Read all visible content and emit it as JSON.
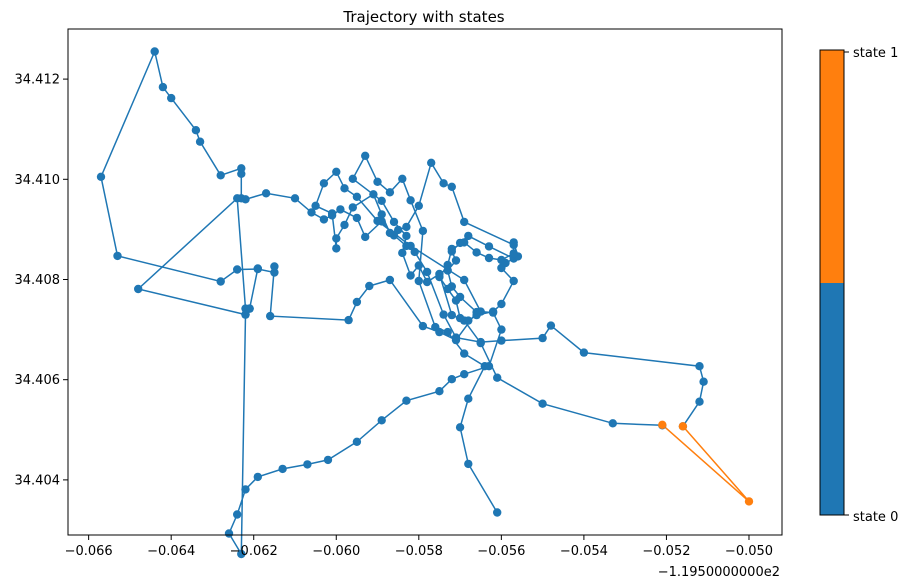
{
  "chart_data": {
    "type": "line",
    "title": "Trajectory with states",
    "xlabel": "",
    "ylabel": "",
    "x_offset_label": "−1.1950000000e2",
    "xlim": [
      -0.0665,
      -0.0492
    ],
    "ylim": [
      34.4029,
      34.413
    ],
    "x_ticks": [
      -0.066,
      -0.064,
      -0.062,
      -0.06,
      -0.058,
      -0.056,
      -0.054,
      -0.052,
      -0.05
    ],
    "x_tick_labels": [
      "−0.066",
      "−0.064",
      "−0.062",
      "−0.060",
      "−0.058",
      "−0.056",
      "−0.054",
      "−0.052",
      "−0.050"
    ],
    "y_ticks": [
      34.404,
      34.406,
      34.408,
      34.41,
      34.412
    ],
    "y_tick_labels": [
      "34.404",
      "34.406",
      "34.408",
      "34.410",
      "34.412"
    ],
    "grid": false,
    "colorbar": {
      "labels": [
        "state 0",
        "state 1"
      ],
      "colors": [
        "#1f77b4",
        "#ff7f0e"
      ]
    },
    "series": [
      {
        "color": "#1f77b4",
        "points": [
          [
            -0.0561,
            34.40335
          ],
          [
            -0.0568,
            34.40432
          ],
          [
            -0.057,
            34.40505
          ],
          [
            -0.0568,
            34.40562
          ],
          [
            -0.0564,
            34.40627
          ],
          [
            -0.0569,
            34.40652
          ],
          [
            -0.0573,
            34.40695
          ],
          [
            -0.0576,
            34.40705
          ],
          [
            -0.058,
            34.40797
          ],
          [
            -0.0579,
            34.40897
          ],
          [
            -0.0582,
            34.40958
          ],
          [
            -0.0584,
            34.41001
          ],
          [
            -0.0587,
            34.40974
          ],
          [
            -0.059,
            34.40995
          ],
          [
            -0.0593,
            34.41047
          ],
          [
            -0.0596,
            34.41001
          ],
          [
            -0.0589,
            34.40957
          ],
          [
            -0.0586,
            34.40915
          ],
          [
            -0.0583,
            34.40887
          ],
          [
            -0.0584,
            34.40853
          ],
          [
            -0.0582,
            34.40808
          ],
          [
            -0.058,
            34.40828
          ],
          [
            -0.0578,
            34.40795
          ],
          [
            -0.0575,
            34.40811
          ],
          [
            -0.0572,
            34.40729
          ],
          [
            -0.0569,
            34.40718
          ],
          [
            -0.0565,
            34.40673
          ],
          [
            -0.0561,
            34.40604
          ],
          [
            -0.055,
            34.40552
          ],
          [
            -0.0533,
            34.40513
          ],
          [
            -0.0521,
            34.40509
          ]
        ]
      },
      {
        "color": "#1f77b4",
        "points": [
          [
            -0.0516,
            34.40507
          ],
          [
            -0.0512,
            34.40556
          ],
          [
            -0.0511,
            34.40596
          ],
          [
            -0.0512,
            34.40627
          ],
          [
            -0.054,
            34.40654
          ],
          [
            -0.0548,
            34.40708
          ],
          [
            -0.055,
            34.40683
          ],
          [
            -0.056,
            34.40678
          ],
          [
            -0.0565,
            34.40675
          ],
          [
            -0.0571,
            34.40684
          ],
          [
            -0.0574,
            34.4073
          ],
          [
            -0.0578,
            34.40815
          ],
          [
            -0.0581,
            34.40855
          ],
          [
            -0.0583,
            34.40867
          ],
          [
            -0.0586,
            34.40888
          ],
          [
            -0.0589,
            34.40916
          ],
          [
            -0.0593,
            34.40885
          ],
          [
            -0.0595,
            34.40923
          ],
          [
            -0.0599,
            34.4094
          ],
          [
            -0.0601,
            34.40928
          ],
          [
            -0.0603,
            34.4092
          ],
          [
            -0.0606,
            34.40934
          ],
          [
            -0.061,
            34.40962
          ],
          [
            -0.0617,
            34.40972
          ],
          [
            -0.0622,
            34.4096
          ],
          [
            -0.0623,
            34.40962
          ],
          [
            -0.0623,
            34.41011
          ],
          [
            -0.0623,
            34.41022
          ],
          [
            -0.0628,
            34.41008
          ],
          [
            -0.0633,
            34.41075
          ],
          [
            -0.0634,
            34.41098
          ],
          [
            -0.064,
            34.41162
          ],
          [
            -0.0642,
            34.41184
          ],
          [
            -0.0644,
            34.41255
          ],
          [
            -0.0657,
            34.41005
          ],
          [
            -0.0653,
            34.40847
          ],
          [
            -0.0628,
            34.40796
          ],
          [
            -0.0624,
            34.4082
          ],
          [
            -0.0619,
            34.40821
          ],
          [
            -0.0615,
            34.40814
          ],
          [
            -0.0615,
            34.40826
          ],
          [
            -0.0616,
            34.40727
          ],
          [
            -0.0597,
            34.40719
          ],
          [
            -0.0595,
            34.40755
          ],
          [
            -0.0592,
            34.40787
          ],
          [
            -0.0587,
            34.40799
          ],
          [
            -0.0579,
            34.40707
          ],
          [
            -0.0575,
            34.40695
          ],
          [
            -0.0571,
            34.40679
          ],
          [
            -0.0566,
            34.40735
          ],
          [
            -0.057,
            34.40765
          ],
          [
            -0.0572,
            34.40786
          ],
          [
            -0.0573,
            34.40818
          ],
          [
            -0.0571,
            34.40838
          ],
          [
            -0.0572,
            34.40856
          ],
          [
            -0.057,
            34.40873
          ],
          [
            -0.0568,
            34.40887
          ],
          [
            -0.0563,
            34.40866
          ],
          [
            -0.0557,
            34.40842
          ],
          [
            -0.0557,
            34.40874
          ],
          [
            -0.0556,
            34.40846
          ],
          [
            -0.0559,
            34.40833
          ],
          [
            -0.056,
            34.40823
          ],
          [
            -0.0557,
            34.40797
          ],
          [
            -0.056,
            34.40751
          ],
          [
            -0.0562,
            34.40736
          ],
          [
            -0.0566,
            34.40729
          ],
          [
            -0.0568,
            34.40718
          ],
          [
            -0.057,
            34.40723
          ],
          [
            -0.0571,
            34.40758
          ],
          [
            -0.0573,
            34.40781
          ],
          [
            -0.0575,
            34.40805
          ],
          [
            -0.0573,
            34.40829
          ],
          [
            -0.0572,
            34.40861
          ],
          [
            -0.0569,
            34.40874
          ],
          [
            -0.0566,
            34.40854
          ],
          [
            -0.0563,
            34.40843
          ],
          [
            -0.056,
            34.40839
          ],
          [
            -0.0557,
            34.40852
          ],
          [
            -0.0557,
            34.40869
          ],
          [
            -0.0569,
            34.40915
          ],
          [
            -0.0572,
            34.40985
          ],
          [
            -0.0574,
            34.40992
          ],
          [
            -0.0577,
            34.41033
          ],
          [
            -0.058,
            34.40947
          ],
          [
            -0.0583,
            34.40905
          ],
          [
            -0.0585,
            34.40899
          ],
          [
            -0.0587,
            34.40893
          ],
          [
            -0.0589,
            34.4093
          ],
          [
            -0.0591,
            34.4097
          ],
          [
            -0.0596,
            34.40944
          ],
          [
            -0.0598,
            34.40909
          ],
          [
            -0.06,
            34.40882
          ],
          [
            -0.06,
            34.40862
          ],
          [
            -0.0601,
            34.40932
          ],
          [
            -0.0605,
            34.40947
          ],
          [
            -0.0603,
            34.40992
          ],
          [
            -0.06,
            34.41015
          ],
          [
            -0.0598,
            34.40982
          ],
          [
            -0.0595,
            34.40965
          ],
          [
            -0.059,
            34.40917
          ],
          [
            -0.0582,
            34.40867
          ],
          [
            -0.0569,
            34.40799
          ],
          [
            -0.0565,
            34.40736
          ],
          [
            -0.0562,
            34.40734
          ],
          [
            -0.056,
            34.407
          ],
          [
            -0.0563,
            34.40627
          ],
          [
            -0.0569,
            34.40611
          ],
          [
            -0.0572,
            34.40601
          ],
          [
            -0.0575,
            34.40577
          ],
          [
            -0.0583,
            34.40558
          ],
          [
            -0.0589,
            34.40519
          ],
          [
            -0.0595,
            34.40476
          ],
          [
            -0.0602,
            34.4044
          ],
          [
            -0.0607,
            34.40431
          ],
          [
            -0.0613,
            34.40422
          ],
          [
            -0.0619,
            34.40406
          ],
          [
            -0.0622,
            34.40381
          ],
          [
            -0.0624,
            34.40331
          ],
          [
            -0.0626,
            34.40293
          ],
          [
            -0.0623,
            34.40252
          ],
          [
            -0.0622,
            34.4073
          ],
          [
            -0.0622,
            34.40742
          ],
          [
            -0.0624,
            34.40962
          ],
          [
            -0.0648,
            34.40781
          ],
          [
            -0.0622,
            34.4073
          ],
          [
            -0.0621,
            34.40742
          ]
        ]
      },
      {
        "color": "#1f77b4",
        "points": [
          [
            -0.0621,
            34.40742
          ],
          [
            -0.0619,
            34.40822
          ]
        ]
      },
      {
        "color": "#ff7f0e",
        "points": [
          [
            -0.0521,
            34.4051
          ],
          [
            -0.05,
            34.40357
          ],
          [
            -0.0516,
            34.40507
          ]
        ]
      }
    ]
  }
}
